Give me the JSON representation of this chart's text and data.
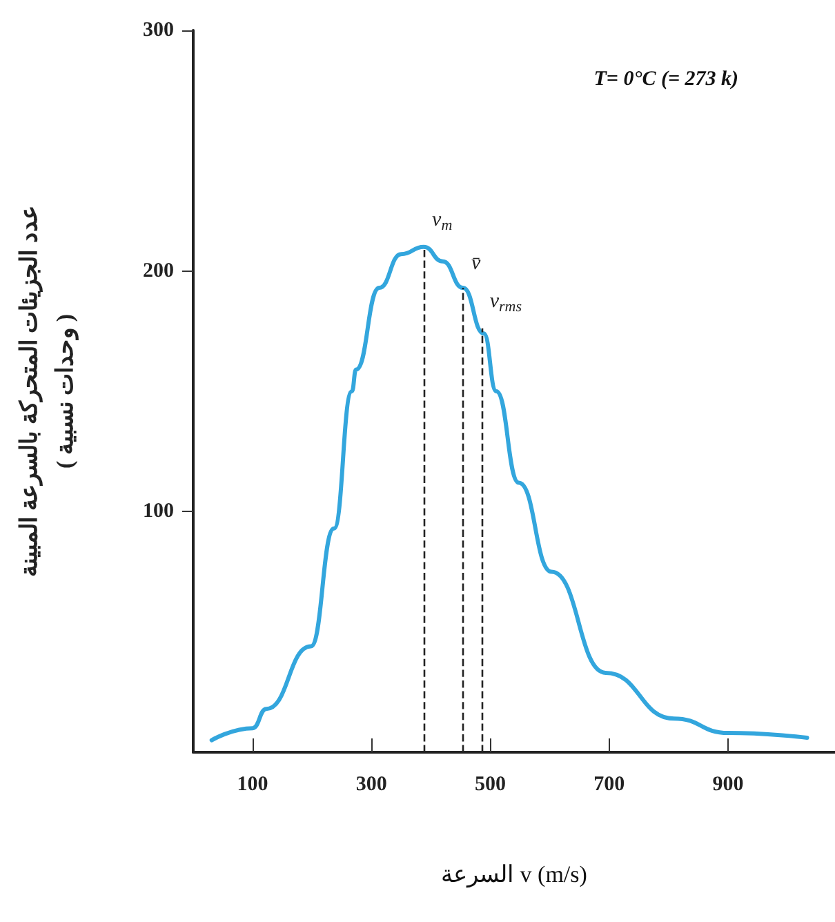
{
  "chart_data": {
    "type": "line",
    "xlabel": "السرعة v (m/s)",
    "ylabel": "عدد الجزيئات المتحركة بالسرعة المبينة\n( وحدات نسبية )",
    "x": [
      31,
      100,
      123,
      198,
      237,
      267,
      274,
      313,
      350,
      388,
      420,
      454,
      489,
      510,
      548,
      603,
      694,
      809,
      900,
      1033
    ],
    "series": [
      {
        "color": "#33a6dd",
        "values": [
          5,
          10,
          18,
          44,
          93,
          150,
          159,
          193,
          207,
          210,
          204,
          193,
          174,
          150,
          112,
          75,
          33,
          14,
          8,
          6
        ]
      }
    ],
    "xlim": [
      0,
      1080
    ],
    "xticks": [
      100,
      300,
      500,
      700,
      900
    ],
    "ylim": [
      0,
      300
    ],
    "yticks": [
      100,
      200,
      300
    ],
    "grid": false,
    "marker": "none",
    "line_style": "solid",
    "ref_lines": [
      {
        "axis": "x",
        "value": 388,
        "label": "v$_{m}$",
        "line_style": "dashed"
      },
      {
        "axis": "x",
        "value": 454,
        "label": "v̄",
        "line_style": "dashed"
      },
      {
        "axis": "x",
        "value": 485,
        "label": "v$_{rms}$",
        "line_style": "dashed"
      }
    ],
    "annotations": [
      "T= 0°C (= 273 k)"
    ]
  }
}
